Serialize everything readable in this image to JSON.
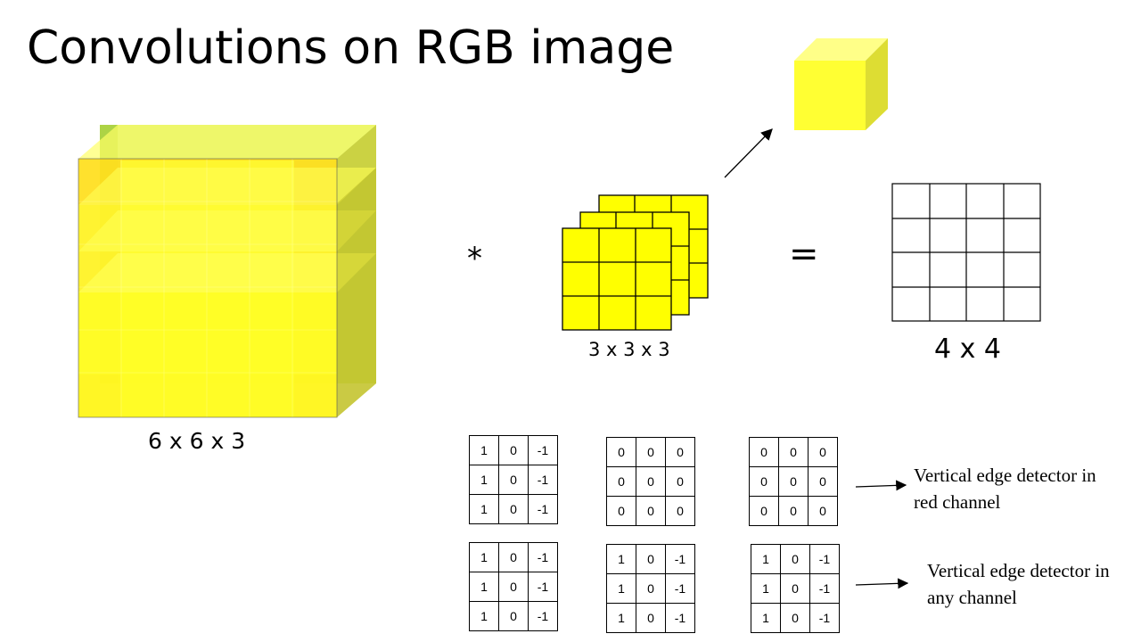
{
  "title": "Convolutions on RGB image",
  "labels": {
    "input_dim": "6 x 6 x 3",
    "filter_dim": "3 x 3 x 3",
    "output_dim": "4 x 4",
    "conv_operator": "*",
    "equals": "="
  },
  "colors": {
    "volume_yellow": "#ffff33",
    "volume_orange": "#ffb000",
    "volume_green": "#99cc00",
    "filter_yellow": "#ffff00",
    "cube_front": "#ffff33",
    "cube_top": "#ffff88",
    "cube_side": "#dddd33"
  },
  "filter_examples": [
    {
      "layers": [
        [
          [
            "1",
            "0",
            "-1"
          ],
          [
            "1",
            "0",
            "-1"
          ],
          [
            "1",
            "0",
            "-1"
          ]
        ],
        [
          [
            "0",
            "0",
            "0"
          ],
          [
            "0",
            "0",
            "0"
          ],
          [
            "0",
            "0",
            "0"
          ]
        ],
        [
          [
            "0",
            "0",
            "0"
          ],
          [
            "0",
            "0",
            "0"
          ],
          [
            "0",
            "0",
            "0"
          ]
        ]
      ],
      "annotation": [
        "Vertical edge detector in",
        "red channel"
      ]
    },
    {
      "layers": [
        [
          [
            "1",
            "0",
            "-1"
          ],
          [
            "1",
            "0",
            "-1"
          ],
          [
            "1",
            "0",
            "-1"
          ]
        ],
        [
          [
            "1",
            "0",
            "-1"
          ],
          [
            "1",
            "0",
            "-1"
          ],
          [
            "1",
            "0",
            "-1"
          ]
        ],
        [
          [
            "1",
            "0",
            "-1"
          ],
          [
            "1",
            "0",
            "-1"
          ],
          [
            "1",
            "0",
            "-1"
          ]
        ]
      ],
      "annotation": [
        "Vertical edge detector in",
        "any channel"
      ]
    }
  ]
}
